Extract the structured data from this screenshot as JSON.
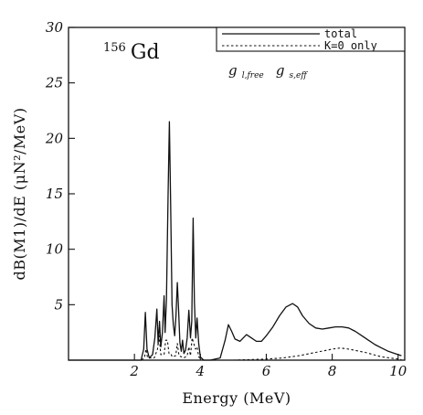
{
  "chart_data": {
    "type": "line",
    "xlabel": "Energy (MeV)",
    "ylabel": "dB(M1)/dE (μN²/MeV)",
    "xlim": [
      0,
      10.2
    ],
    "ylim": [
      0,
      30
    ],
    "x_ticks": [
      2,
      4,
      6,
      8,
      10
    ],
    "y_ticks": [
      5,
      10,
      15,
      20,
      25,
      30
    ],
    "annotations": {
      "nucleus_mass": "156",
      "nucleus_symbol": "Gd",
      "g_l": "g",
      "g_l_sub": "l,free",
      "g_s": "g",
      "g_s_sub": "s,eff"
    },
    "legend": {
      "placement": "top-right"
    },
    "series": [
      {
        "name": "total",
        "style": "solid",
        "x": [
          0,
          2.2,
          2.28,
          2.33,
          2.38,
          2.45,
          2.55,
          2.62,
          2.68,
          2.72,
          2.76,
          2.8,
          2.85,
          2.9,
          2.93,
          2.97,
          3.02,
          3.06,
          3.1,
          3.14,
          3.18,
          3.22,
          3.26,
          3.3,
          3.34,
          3.38,
          3.42,
          3.46,
          3.5,
          3.55,
          3.6,
          3.65,
          3.7,
          3.74,
          3.78,
          3.82,
          3.86,
          3.9,
          3.95,
          4.0,
          4.1,
          4.3,
          4.6,
          4.75,
          4.85,
          4.95,
          5.05,
          5.2,
          5.4,
          5.55,
          5.7,
          5.85,
          6.0,
          6.2,
          6.4,
          6.6,
          6.8,
          6.95,
          7.1,
          7.3,
          7.5,
          7.7,
          7.9,
          8.1,
          8.3,
          8.5,
          8.7,
          8.9,
          9.1,
          9.3,
          9.5,
          9.7,
          9.9,
          10.1
        ],
        "values": [
          0,
          0,
          1.0,
          4.3,
          1.0,
          0.2,
          0.5,
          2.0,
          4.6,
          1.5,
          3.5,
          1.2,
          2.5,
          5.8,
          2.5,
          5.5,
          15.0,
          21.5,
          14.0,
          5.0,
          3.2,
          2.2,
          4.0,
          7.0,
          4.5,
          1.6,
          0.8,
          1.8,
          0.6,
          0.9,
          2.0,
          4.5,
          2.0,
          3.5,
          12.8,
          5.2,
          2.0,
          3.8,
          1.5,
          0.3,
          0,
          0,
          0.2,
          1.8,
          3.2,
          2.6,
          1.9,
          1.7,
          2.3,
          2.0,
          1.7,
          1.7,
          2.2,
          3.0,
          4.0,
          4.8,
          5.1,
          4.8,
          4.0,
          3.3,
          2.9,
          2.8,
          2.9,
          3.0,
          3.0,
          2.9,
          2.6,
          2.2,
          1.8,
          1.4,
          1.1,
          0.8,
          0.6,
          0.4
        ]
      },
      {
        "name": "K=0 only",
        "style": "dashed",
        "x": [
          0,
          2.2,
          2.3,
          2.35,
          2.4,
          2.6,
          2.7,
          2.75,
          2.8,
          2.9,
          2.95,
          3.0,
          3.05,
          3.1,
          3.15,
          3.25,
          3.3,
          3.35,
          3.5,
          3.6,
          3.65,
          3.7,
          3.75,
          3.8,
          3.85,
          3.9,
          3.95,
          4.05,
          4.2,
          5.0,
          5.5,
          6.0,
          6.5,
          7.0,
          7.5,
          8.0,
          8.25,
          8.5,
          9.0,
          9.5,
          10.0,
          10.1
        ],
        "values": [
          0,
          0,
          0.2,
          1.0,
          0.2,
          0.2,
          1.0,
          2.2,
          0.5,
          0.5,
          1.8,
          1.8,
          0.6,
          0.6,
          0.3,
          0.4,
          1.5,
          0.4,
          0.2,
          0.4,
          1.2,
          0.4,
          2.0,
          1.5,
          1.0,
          1.2,
          0.3,
          0,
          0,
          0,
          0.05,
          0.1,
          0.2,
          0.4,
          0.7,
          1.0,
          1.1,
          1.0,
          0.7,
          0.3,
          0.1,
          0.05
        ]
      }
    ]
  }
}
